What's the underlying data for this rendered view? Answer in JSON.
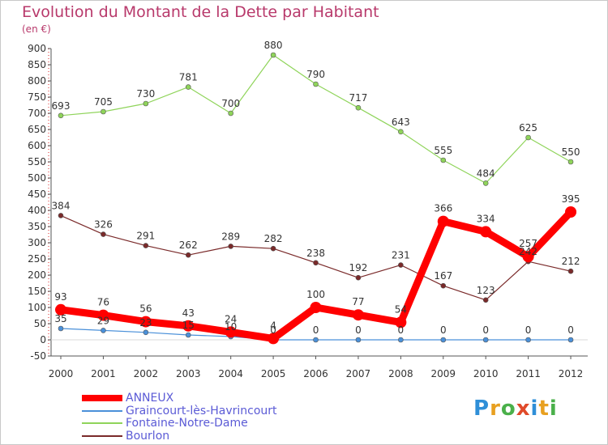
{
  "title": "Evolution du Montant de la Dette par Habitant",
  "unit": "(en €)",
  "logo": "Proxiti",
  "chart_data": {
    "type": "line",
    "x": [
      "2000",
      "2001",
      "2002",
      "2003",
      "2004",
      "2005",
      "2006",
      "2007",
      "2008",
      "2009",
      "2010",
      "2011",
      "2012"
    ],
    "ylim": [
      -50,
      900
    ],
    "yticks": [
      -50,
      0,
      50,
      100,
      150,
      200,
      250,
      300,
      350,
      400,
      450,
      500,
      550,
      600,
      650,
      700,
      750,
      800,
      850,
      900
    ],
    "grid": false,
    "legend_position": "bottom-left",
    "series": [
      {
        "name": "ANNEUX",
        "color": "#ff0000",
        "values": [
          93,
          76,
          56,
          43,
          24,
          4,
          100,
          77,
          54,
          366,
          334,
          257,
          395
        ]
      },
      {
        "name": "Graincourt-lès-Havrincourt",
        "color": "#4a90d9",
        "values": [
          35,
          29,
          23,
          15,
          10,
          0,
          0,
          0,
          0,
          0,
          0,
          0,
          0
        ]
      },
      {
        "name": "Fontaine-Notre-Dame",
        "color": "#8fd45a",
        "values": [
          693,
          705,
          730,
          781,
          700,
          880,
          790,
          717,
          643,
          555,
          484,
          625,
          550
        ]
      },
      {
        "name": "Bourlon",
        "color": "#7a2a2a",
        "values": [
          384,
          326,
          291,
          262,
          289,
          282,
          238,
          192,
          231,
          167,
          123,
          242,
          212
        ]
      }
    ]
  }
}
